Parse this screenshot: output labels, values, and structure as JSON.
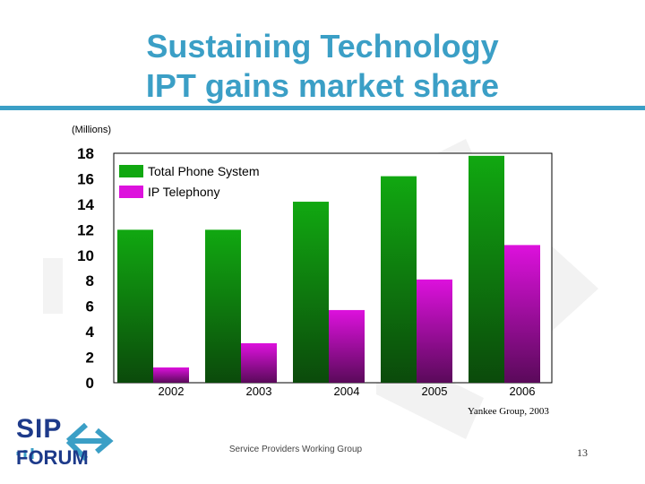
{
  "slide": {
    "title_line1": "Sustaining Technology",
    "title_line2": "IPT gains market share",
    "units": "(Millions)",
    "source": "Yankee Group, 2003",
    "footer": "Service Providers Working Group",
    "page_number": "13",
    "logo_top": "SIP",
    "logo_bottom": "FORUM",
    "brand_color": "#3b9fc6"
  },
  "chart_data": {
    "type": "bar",
    "categories": [
      "2002",
      "2003",
      "2004",
      "2005",
      "2006"
    ],
    "series": [
      {
        "name": "Total Phone System",
        "values": [
          12.0,
          12.0,
          14.2,
          16.2,
          17.8
        ],
        "color_top": "#11a811",
        "color_bottom": "#0b4a0b"
      },
      {
        "name": "IP Telephony",
        "values": [
          1.2,
          3.1,
          5.7,
          8.1,
          10.8
        ],
        "color_top": "#dd11dd",
        "color_bottom": "#5a0a5a"
      }
    ],
    "y_ticks": [
      "0",
      "2",
      "4",
      "6",
      "8",
      "10",
      "12",
      "14",
      "16",
      "18"
    ],
    "ylim": [
      0,
      18
    ],
    "legend_position": "top-left",
    "grid": false
  }
}
